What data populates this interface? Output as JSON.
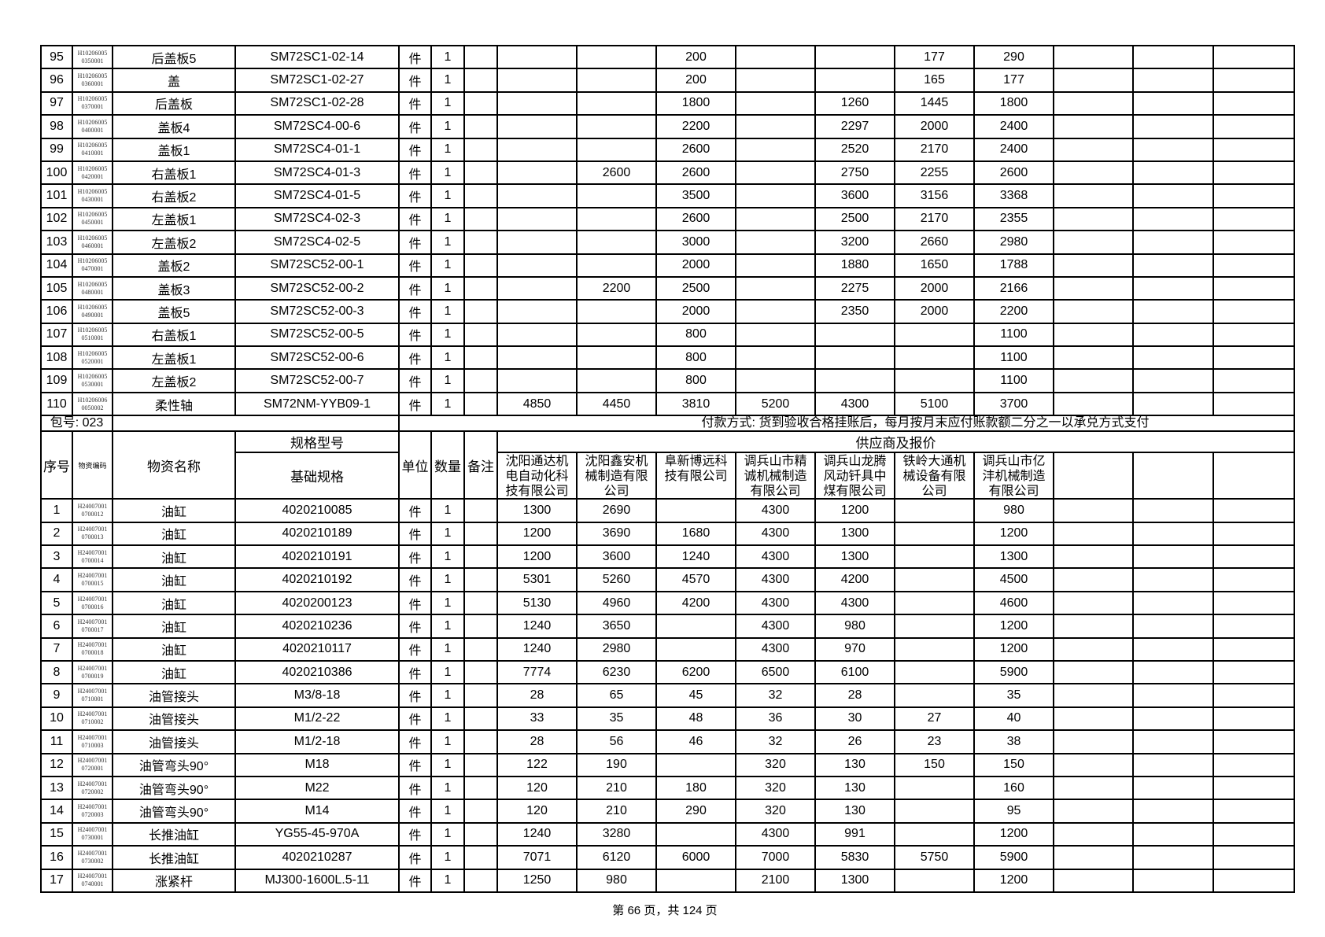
{
  "top_rows": [
    {
      "no": "95",
      "code": "H10206005\n0350001",
      "name": "后盖板5",
      "spec": "SM72SC1-02-14",
      "unit": "件",
      "qty": "1",
      "note": "",
      "prices": [
        "",
        "",
        "200",
        "",
        "",
        "177",
        "290",
        "",
        "",
        ""
      ]
    },
    {
      "no": "96",
      "code": "H10206005\n0360001",
      "name": "盖",
      "spec": "SM72SC1-02-27",
      "unit": "件",
      "qty": "1",
      "note": "",
      "prices": [
        "",
        "",
        "200",
        "",
        "",
        "165",
        "177",
        "",
        "",
        ""
      ]
    },
    {
      "no": "97",
      "code": "H10206005\n0370001",
      "name": "后盖板",
      "spec": "SM72SC1-02-28",
      "unit": "件",
      "qty": "1",
      "note": "",
      "prices": [
        "",
        "",
        "1800",
        "",
        "1260",
        "1445",
        "1800",
        "",
        "",
        ""
      ]
    },
    {
      "no": "98",
      "code": "H10206005\n0400001",
      "name": "盖板4",
      "spec": "SM72SC4-00-6",
      "unit": "件",
      "qty": "1",
      "note": "",
      "prices": [
        "",
        "",
        "2200",
        "",
        "2297",
        "2000",
        "2400",
        "",
        "",
        ""
      ]
    },
    {
      "no": "99",
      "code": "H10206005\n0410001",
      "name": "盖板1",
      "spec": "SM72SC4-01-1",
      "unit": "件",
      "qty": "1",
      "note": "",
      "prices": [
        "",
        "",
        "2600",
        "",
        "2520",
        "2170",
        "2400",
        "",
        "",
        ""
      ]
    },
    {
      "no": "100",
      "code": "H10206005\n0420001",
      "name": "右盖板1",
      "spec": "SM72SC4-01-3",
      "unit": "件",
      "qty": "1",
      "note": "",
      "prices": [
        "",
        "2600",
        "2600",
        "",
        "2750",
        "2255",
        "2600",
        "",
        "",
        ""
      ]
    },
    {
      "no": "101",
      "code": "H10206005\n0430001",
      "name": "右盖板2",
      "spec": "SM72SC4-01-5",
      "unit": "件",
      "qty": "1",
      "note": "",
      "prices": [
        "",
        "",
        "3500",
        "",
        "3600",
        "3156",
        "3368",
        "",
        "",
        ""
      ]
    },
    {
      "no": "102",
      "code": "H10206005\n0450001",
      "name": "左盖板1",
      "spec": "SM72SC4-02-3",
      "unit": "件",
      "qty": "1",
      "note": "",
      "prices": [
        "",
        "",
        "2600",
        "",
        "2500",
        "2170",
        "2355",
        "",
        "",
        ""
      ]
    },
    {
      "no": "103",
      "code": "H10206005\n0460001",
      "name": "左盖板2",
      "spec": "SM72SC4-02-5",
      "unit": "件",
      "qty": "1",
      "note": "",
      "prices": [
        "",
        "",
        "3000",
        "",
        "3200",
        "2660",
        "2980",
        "",
        "",
        ""
      ]
    },
    {
      "no": "104",
      "code": "H10206005\n0470001",
      "name": "盖板2",
      "spec": "SM72SC52-00-1",
      "unit": "件",
      "qty": "1",
      "note": "",
      "prices": [
        "",
        "",
        "2000",
        "",
        "1880",
        "1650",
        "1788",
        "",
        "",
        ""
      ]
    },
    {
      "no": "105",
      "code": "H10206005\n0480001",
      "name": "盖板3",
      "spec": "SM72SC52-00-2",
      "unit": "件",
      "qty": "1",
      "note": "",
      "prices": [
        "",
        "2200",
        "2500",
        "",
        "2275",
        "2000",
        "2166",
        "",
        "",
        ""
      ]
    },
    {
      "no": "106",
      "code": "H10206005\n0490001",
      "name": "盖板5",
      "spec": "SM72SC52-00-3",
      "unit": "件",
      "qty": "1",
      "note": "",
      "prices": [
        "",
        "",
        "2000",
        "",
        "2350",
        "2000",
        "2200",
        "",
        "",
        ""
      ]
    },
    {
      "no": "107",
      "code": "H10206005\n0510001",
      "name": "右盖板1",
      "spec": "SM72SC52-00-5",
      "unit": "件",
      "qty": "1",
      "note": "",
      "prices": [
        "",
        "",
        "800",
        "",
        "",
        "",
        "1100",
        "",
        "",
        ""
      ]
    },
    {
      "no": "108",
      "code": "H10206005\n0520001",
      "name": "左盖板1",
      "spec": "SM72SC52-00-6",
      "unit": "件",
      "qty": "1",
      "note": "",
      "prices": [
        "",
        "",
        "800",
        "",
        "",
        "",
        "1100",
        "",
        "",
        ""
      ]
    },
    {
      "no": "109",
      "code": "H10206005\n0530001",
      "name": "左盖板2",
      "spec": "SM72SC52-00-7",
      "unit": "件",
      "qty": "1",
      "note": "",
      "prices": [
        "",
        "",
        "800",
        "",
        "",
        "",
        "1100",
        "",
        "",
        ""
      ]
    },
    {
      "no": "110",
      "code": "H10206006\n0050002",
      "name": "柔性轴",
      "spec": "SM72NM-YYB09-1",
      "unit": "件",
      "qty": "1",
      "note": "",
      "prices": [
        "4850",
        "4450",
        "3810",
        "5200",
        "4300",
        "5100",
        "3700",
        "",
        "",
        ""
      ]
    }
  ],
  "package": {
    "label": "包号: 023",
    "payment": "付款方式: 货到验收合格挂账后，每月按月末应付账款额二分之一以承兑方式支付"
  },
  "header": {
    "no": "序号",
    "code": "物资编码",
    "name": "物资名称",
    "spec_group": "规格型号",
    "spec": "基础规格",
    "unit": "单位",
    "qty": "数量",
    "note": "备注",
    "supplier_group": "供应商及报价",
    "suppliers": [
      "沈阳通达机电自动化科技有限公司",
      "沈阳鑫安机械制造有限公司",
      "阜新博远科技有限公司",
      "调兵山市精诚机械制造有限公司",
      "调兵山龙腾风动钎具中煤有限公司",
      "铁岭大通机械设备有限公司",
      "调兵山市亿沣机械制造有限公司",
      "",
      "",
      ""
    ]
  },
  "bottom_rows": [
    {
      "no": "1",
      "code": "H24007001\n0700012",
      "name": "油缸",
      "spec": "4020210085",
      "unit": "件",
      "qty": "1",
      "note": "",
      "prices": [
        "1300",
        "2690",
        "",
        "4300",
        "1200",
        "",
        "980",
        "",
        "",
        ""
      ]
    },
    {
      "no": "2",
      "code": "H24007001\n0700013",
      "name": "油缸",
      "spec": "4020210189",
      "unit": "件",
      "qty": "1",
      "note": "",
      "prices": [
        "1200",
        "3690",
        "1680",
        "4300",
        "1300",
        "",
        "1200",
        "",
        "",
        ""
      ]
    },
    {
      "no": "3",
      "code": "H24007001\n0700014",
      "name": "油缸",
      "spec": "4020210191",
      "unit": "件",
      "qty": "1",
      "note": "",
      "prices": [
        "1200",
        "3600",
        "1240",
        "4300",
        "1300",
        "",
        "1300",
        "",
        "",
        ""
      ]
    },
    {
      "no": "4",
      "code": "H24007001\n0700015",
      "name": "油缸",
      "spec": "4020210192",
      "unit": "件",
      "qty": "1",
      "note": "",
      "prices": [
        "5301",
        "5260",
        "4570",
        "4300",
        "4200",
        "",
        "4500",
        "",
        "",
        ""
      ]
    },
    {
      "no": "5",
      "code": "H24007001\n0700016",
      "name": "油缸",
      "spec": "4020200123",
      "unit": "件",
      "qty": "1",
      "note": "",
      "prices": [
        "5130",
        "4960",
        "4200",
        "4300",
        "4300",
        "",
        "4600",
        "",
        "",
        ""
      ]
    },
    {
      "no": "6",
      "code": "H24007001\n0700017",
      "name": "油缸",
      "spec": "4020210236",
      "unit": "件",
      "qty": "1",
      "note": "",
      "prices": [
        "1240",
        "3650",
        "",
        "4300",
        "980",
        "",
        "1200",
        "",
        "",
        ""
      ]
    },
    {
      "no": "7",
      "code": "H24007001\n0700018",
      "name": "油缸",
      "spec": "4020210117",
      "unit": "件",
      "qty": "1",
      "note": "",
      "prices": [
        "1240",
        "2980",
        "",
        "4300",
        "970",
        "",
        "1200",
        "",
        "",
        ""
      ]
    },
    {
      "no": "8",
      "code": "H24007001\n0700019",
      "name": "油缸",
      "spec": "4020210386",
      "unit": "件",
      "qty": "1",
      "note": "",
      "prices": [
        "7774",
        "6230",
        "6200",
        "6500",
        "6100",
        "",
        "5900",
        "",
        "",
        ""
      ]
    },
    {
      "no": "9",
      "code": "H24007001\n0710001",
      "name": "油管接头",
      "spec": "M3/8-18",
      "unit": "件",
      "qty": "1",
      "note": "",
      "prices": [
        "28",
        "65",
        "45",
        "32",
        "28",
        "",
        "35",
        "",
        "",
        ""
      ]
    },
    {
      "no": "10",
      "code": "H24007001\n0710002",
      "name": "油管接头",
      "spec": "M1/2-22",
      "unit": "件",
      "qty": "1",
      "note": "",
      "prices": [
        "33",
        "35",
        "48",
        "36",
        "30",
        "27",
        "40",
        "",
        "",
        ""
      ]
    },
    {
      "no": "11",
      "code": "H24007001\n0710003",
      "name": "油管接头",
      "spec": "M1/2-18",
      "unit": "件",
      "qty": "1",
      "note": "",
      "prices": [
        "28",
        "56",
        "46",
        "32",
        "26",
        "23",
        "38",
        "",
        "",
        ""
      ]
    },
    {
      "no": "12",
      "code": "H24007001\n0720001",
      "name": "油管弯头90°",
      "spec": "M18",
      "unit": "件",
      "qty": "1",
      "note": "",
      "prices": [
        "122",
        "190",
        "",
        "320",
        "130",
        "150",
        "150",
        "",
        "",
        ""
      ]
    },
    {
      "no": "13",
      "code": "H24007001\n0720002",
      "name": "油管弯头90°",
      "spec": "M22",
      "unit": "件",
      "qty": "1",
      "note": "",
      "prices": [
        "120",
        "210",
        "180",
        "320",
        "130",
        "",
        "160",
        "",
        "",
        ""
      ]
    },
    {
      "no": "14",
      "code": "H24007001\n0720003",
      "name": "油管弯头90°",
      "spec": "M14",
      "unit": "件",
      "qty": "1",
      "note": "",
      "prices": [
        "120",
        "210",
        "290",
        "320",
        "130",
        "",
        "95",
        "",
        "",
        ""
      ]
    },
    {
      "no": "15",
      "code": "H24007001\n0730001",
      "name": "长推油缸",
      "spec": "YG55-45-970A",
      "unit": "件",
      "qty": "1",
      "note": "",
      "prices": [
        "1240",
        "3280",
        "",
        "4300",
        "991",
        "",
        "1200",
        "",
        "",
        ""
      ]
    },
    {
      "no": "16",
      "code": "H24007001\n0730002",
      "name": "长推油缸",
      "spec": "4020210287",
      "unit": "件",
      "qty": "1",
      "note": "",
      "prices": [
        "7071",
        "6120",
        "6000",
        "7000",
        "5830",
        "5750",
        "5900",
        "",
        "",
        ""
      ]
    },
    {
      "no": "17",
      "code": "H24007001\n0740001",
      "name": "涨紧杆",
      "spec": "MJ300-1600L.5-11",
      "unit": "件",
      "qty": "1",
      "note": "",
      "prices": [
        "1250",
        "980",
        "",
        "2100",
        "1300",
        "",
        "1200",
        "",
        "",
        ""
      ]
    }
  ],
  "footer": {
    "page_info": "第 66 页，共 124 页"
  }
}
